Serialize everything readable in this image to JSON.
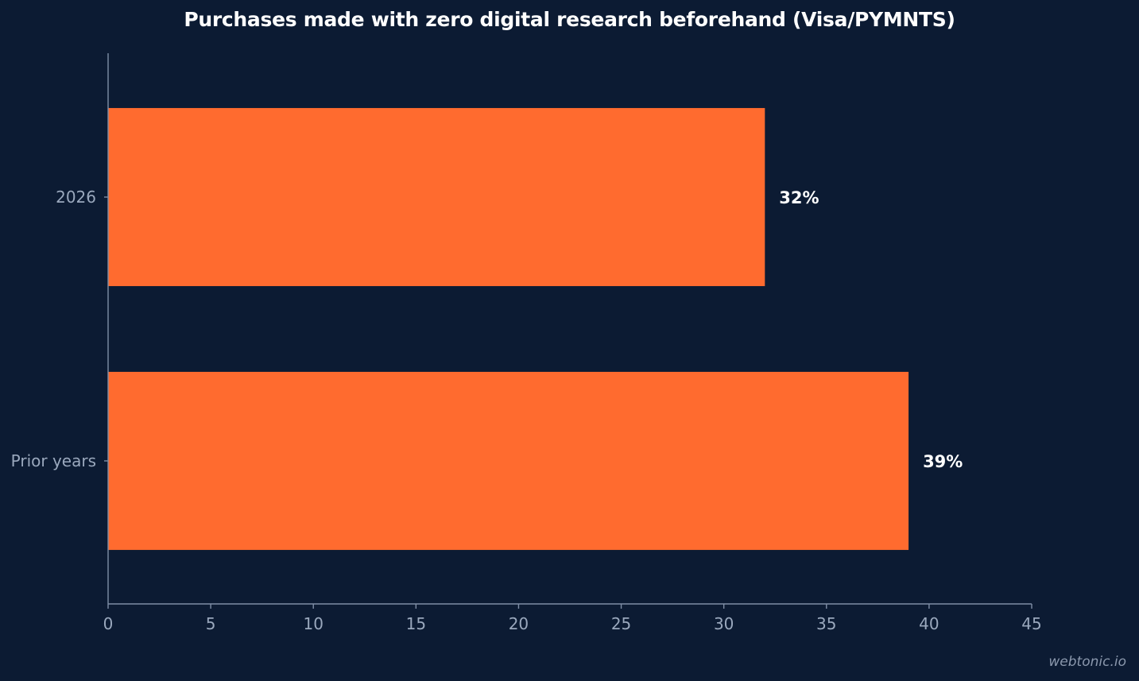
{
  "chart_data": {
    "type": "bar",
    "orientation": "horizontal",
    "title": "Purchases made with zero digital research beforehand (Visa/PYMNTS)",
    "xlabel": "",
    "ylabel": "",
    "categories": [
      "2026",
      "Prior years"
    ],
    "values": [
      32,
      39
    ],
    "data_labels": [
      "32%",
      "39%"
    ],
    "xlim": [
      0,
      45
    ],
    "x_ticks": [
      0,
      5,
      10,
      15,
      20,
      25,
      30,
      35,
      40,
      45
    ],
    "x_tick_labels": [
      "0",
      "5",
      "10",
      "15",
      "20",
      "25",
      "30",
      "35",
      "40",
      "45"
    ],
    "grid": false,
    "legend": "none",
    "colors": {
      "background": "#0c1b33",
      "bar": "#ff6b2f",
      "axis": "#7f8ea6",
      "tick_text": "#9aa8bd",
      "label_text": "#ffffff"
    }
  },
  "watermark": "webtonic.io"
}
